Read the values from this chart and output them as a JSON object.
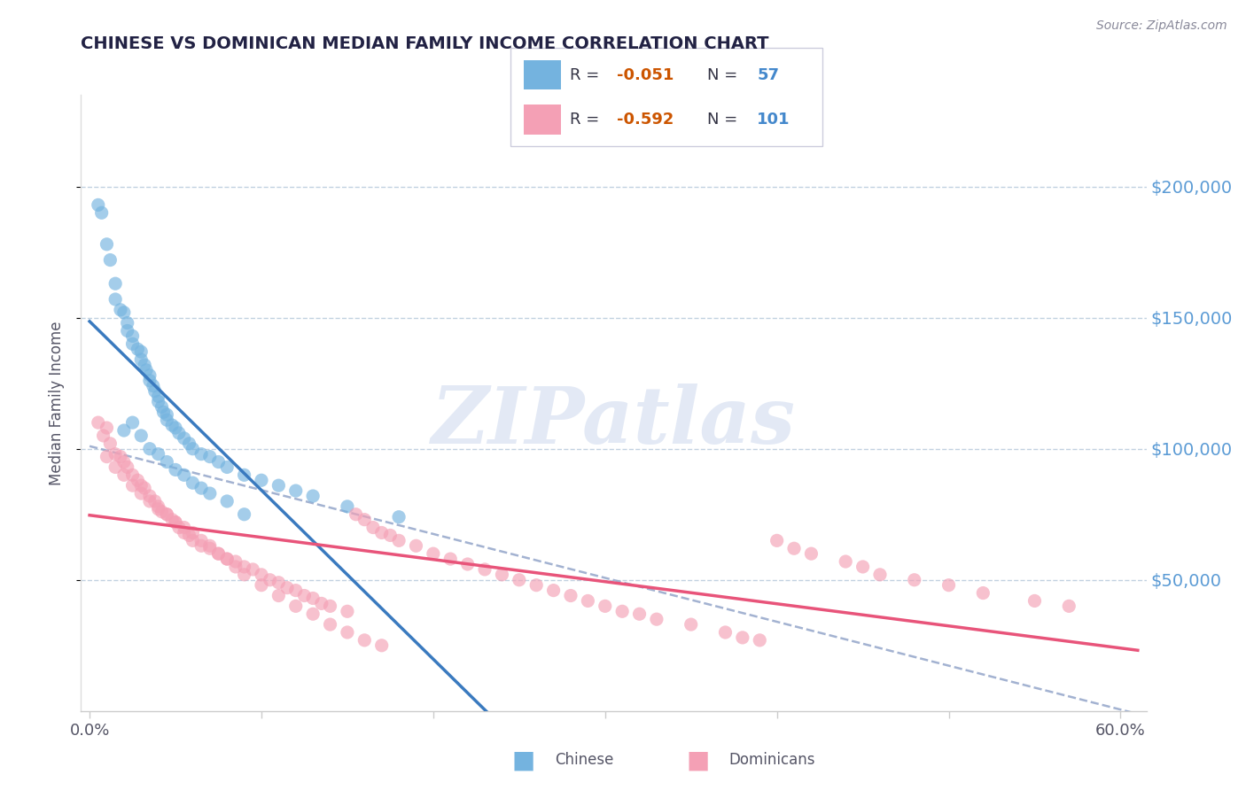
{
  "title": "CHINESE VS DOMINICAN MEDIAN FAMILY INCOME CORRELATION CHART",
  "source_text": "Source: ZipAtlas.com",
  "ylabel": "Median Family Income",
  "xlim": [
    -0.005,
    0.615
  ],
  "ylim": [
    0,
    235000
  ],
  "y_tick_values": [
    50000,
    100000,
    150000,
    200000
  ],
  "y_tick_labels": [
    "$50,000",
    "$100,000",
    "$150,000",
    "$200,000"
  ],
  "chinese_color": "#74b3df",
  "dominican_color": "#f4a0b5",
  "chinese_line_color": "#3a7abf",
  "dominican_line_color": "#e8547a",
  "ref_line_color": "#99aacc",
  "grid_color": "#bbccdd",
  "watermark": "ZIPatlas",
  "watermark_color": "#ccd8ee",
  "chinese_x": [
    0.005,
    0.007,
    0.01,
    0.012,
    0.015,
    0.015,
    0.018,
    0.02,
    0.022,
    0.022,
    0.025,
    0.025,
    0.028,
    0.03,
    0.03,
    0.032,
    0.033,
    0.035,
    0.035,
    0.037,
    0.038,
    0.04,
    0.04,
    0.042,
    0.043,
    0.045,
    0.045,
    0.048,
    0.05,
    0.052,
    0.055,
    0.058,
    0.06,
    0.065,
    0.07,
    0.075,
    0.08,
    0.09,
    0.1,
    0.11,
    0.12,
    0.13,
    0.15,
    0.18,
    0.02,
    0.025,
    0.03,
    0.035,
    0.04,
    0.045,
    0.05,
    0.055,
    0.06,
    0.065,
    0.07,
    0.08,
    0.09
  ],
  "chinese_y": [
    193000,
    190000,
    178000,
    172000,
    163000,
    157000,
    153000,
    152000,
    148000,
    145000,
    143000,
    140000,
    138000,
    137000,
    134000,
    132000,
    130000,
    128000,
    126000,
    124000,
    122000,
    120000,
    118000,
    116000,
    114000,
    113000,
    111000,
    109000,
    108000,
    106000,
    104000,
    102000,
    100000,
    98000,
    97000,
    95000,
    93000,
    90000,
    88000,
    86000,
    84000,
    82000,
    78000,
    74000,
    107000,
    110000,
    105000,
    100000,
    98000,
    95000,
    92000,
    90000,
    87000,
    85000,
    83000,
    80000,
    75000
  ],
  "dominican_x": [
    0.005,
    0.008,
    0.01,
    0.012,
    0.015,
    0.018,
    0.02,
    0.022,
    0.025,
    0.028,
    0.03,
    0.032,
    0.035,
    0.038,
    0.04,
    0.042,
    0.045,
    0.048,
    0.05,
    0.052,
    0.055,
    0.058,
    0.06,
    0.065,
    0.07,
    0.075,
    0.08,
    0.085,
    0.09,
    0.095,
    0.1,
    0.105,
    0.11,
    0.115,
    0.12,
    0.125,
    0.13,
    0.135,
    0.14,
    0.15,
    0.155,
    0.16,
    0.165,
    0.17,
    0.175,
    0.18,
    0.19,
    0.2,
    0.21,
    0.22,
    0.23,
    0.24,
    0.25,
    0.26,
    0.27,
    0.28,
    0.29,
    0.3,
    0.31,
    0.32,
    0.33,
    0.35,
    0.37,
    0.38,
    0.39,
    0.4,
    0.41,
    0.42,
    0.44,
    0.45,
    0.46,
    0.48,
    0.5,
    0.52,
    0.55,
    0.57,
    0.01,
    0.015,
    0.02,
    0.025,
    0.03,
    0.035,
    0.04,
    0.045,
    0.05,
    0.055,
    0.06,
    0.065,
    0.07,
    0.075,
    0.08,
    0.085,
    0.09,
    0.1,
    0.11,
    0.12,
    0.13,
    0.14,
    0.15,
    0.16,
    0.17
  ],
  "dominican_y": [
    110000,
    105000,
    108000,
    102000,
    98000,
    97000,
    95000,
    93000,
    90000,
    88000,
    86000,
    85000,
    82000,
    80000,
    78000,
    76000,
    75000,
    73000,
    72000,
    70000,
    68000,
    67000,
    65000,
    63000,
    62000,
    60000,
    58000,
    57000,
    55000,
    54000,
    52000,
    50000,
    49000,
    47000,
    46000,
    44000,
    43000,
    41000,
    40000,
    38000,
    75000,
    73000,
    70000,
    68000,
    67000,
    65000,
    63000,
    60000,
    58000,
    56000,
    54000,
    52000,
    50000,
    48000,
    46000,
    44000,
    42000,
    40000,
    38000,
    37000,
    35000,
    33000,
    30000,
    28000,
    27000,
    65000,
    62000,
    60000,
    57000,
    55000,
    52000,
    50000,
    48000,
    45000,
    42000,
    40000,
    97000,
    93000,
    90000,
    86000,
    83000,
    80000,
    77000,
    75000,
    72000,
    70000,
    68000,
    65000,
    63000,
    60000,
    58000,
    55000,
    52000,
    48000,
    44000,
    40000,
    37000,
    33000,
    30000,
    27000,
    25000
  ]
}
